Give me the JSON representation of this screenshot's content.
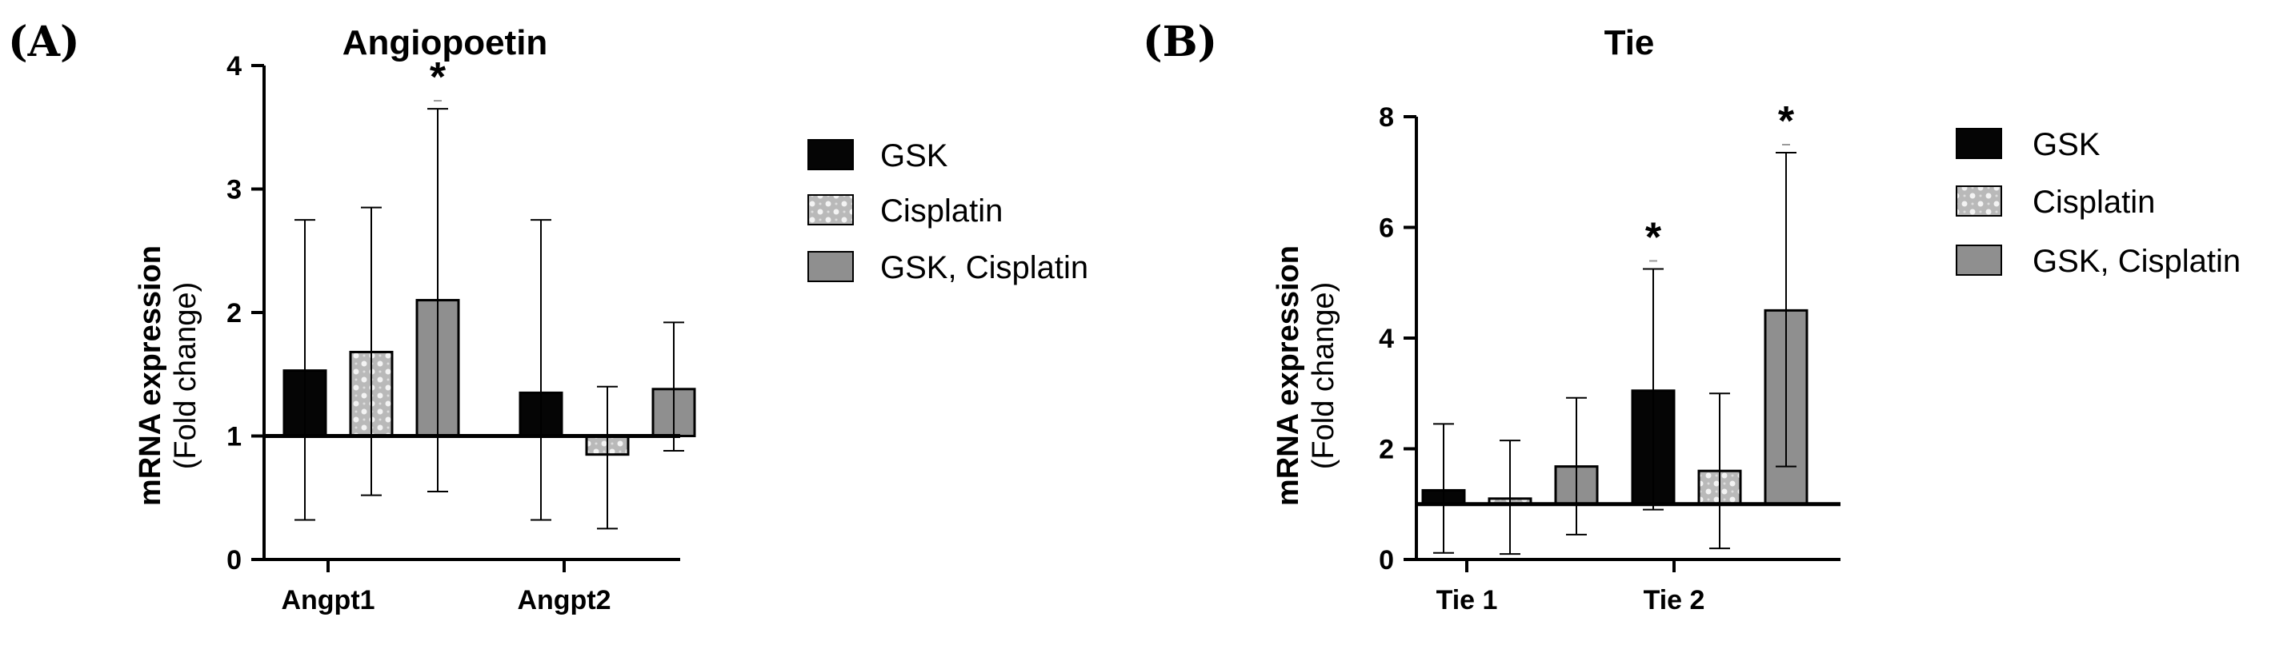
{
  "chart_data": [
    {
      "type": "bar",
      "panel_label": "(A)",
      "title": "Angiopoetin",
      "ylabel_line1": "mRNA expression",
      "ylabel_line2": "(Fold change)",
      "ylim": [
        0,
        4
      ],
      "yticks": [
        0,
        1,
        2,
        3,
        4
      ],
      "baseline": 1,
      "categories": [
        "Angpt1",
        "Angpt2"
      ],
      "series": [
        {
          "name": "GSK",
          "values": [
            1.53,
            1.35
          ],
          "err_high": [
            2.75,
            2.75
          ],
          "err_low": [
            0.32,
            0.32
          ],
          "sig": [
            false,
            false
          ]
        },
        {
          "name": "Cisplatin",
          "values": [
            1.68,
            0.85
          ],
          "err_high": [
            2.85,
            1.4
          ],
          "err_low": [
            0.52,
            0.25
          ],
          "sig": [
            false,
            false
          ]
        },
        {
          "name": "GSK, Cisplatin",
          "values": [
            2.1,
            1.38
          ],
          "err_high": [
            3.65,
            1.92
          ],
          "err_low": [
            0.55,
            0.88
          ],
          "sig": [
            true,
            false
          ]
        }
      ],
      "star_label": "*"
    },
    {
      "type": "bar",
      "panel_label": "(B)",
      "title": "Tie",
      "ylabel_line1": "mRNA expression",
      "ylabel_line2": "(Fold change)",
      "ylim": [
        0,
        8
      ],
      "yticks": [
        0,
        2,
        4,
        6,
        8
      ],
      "baseline": 1,
      "categories": [
        "Tie 1",
        "Tie 2"
      ],
      "series": [
        {
          "name": "GSK",
          "values": [
            1.25,
            3.05
          ],
          "err_high": [
            2.45,
            5.25
          ],
          "err_low": [
            0.12,
            0.9
          ],
          "sig": [
            false,
            true
          ]
        },
        {
          "name": "Cisplatin",
          "values": [
            1.1,
            1.6
          ],
          "err_high": [
            2.15,
            3.0
          ],
          "err_low": [
            0.1,
            0.2
          ],
          "sig": [
            false,
            false
          ]
        },
        {
          "name": "GSK, Cisplatin",
          "values": [
            1.68,
            4.5
          ],
          "err_high": [
            2.92,
            7.35
          ],
          "err_low": [
            0.45,
            1.68
          ],
          "sig": [
            false,
            true
          ]
        }
      ],
      "star_label": "*"
    }
  ],
  "colors": {
    "GSK": "#050505",
    "Cisplatin": "#c8c8c8",
    "GSK, Cisplatin": "#8f8f8f",
    "axis": "#000000"
  }
}
